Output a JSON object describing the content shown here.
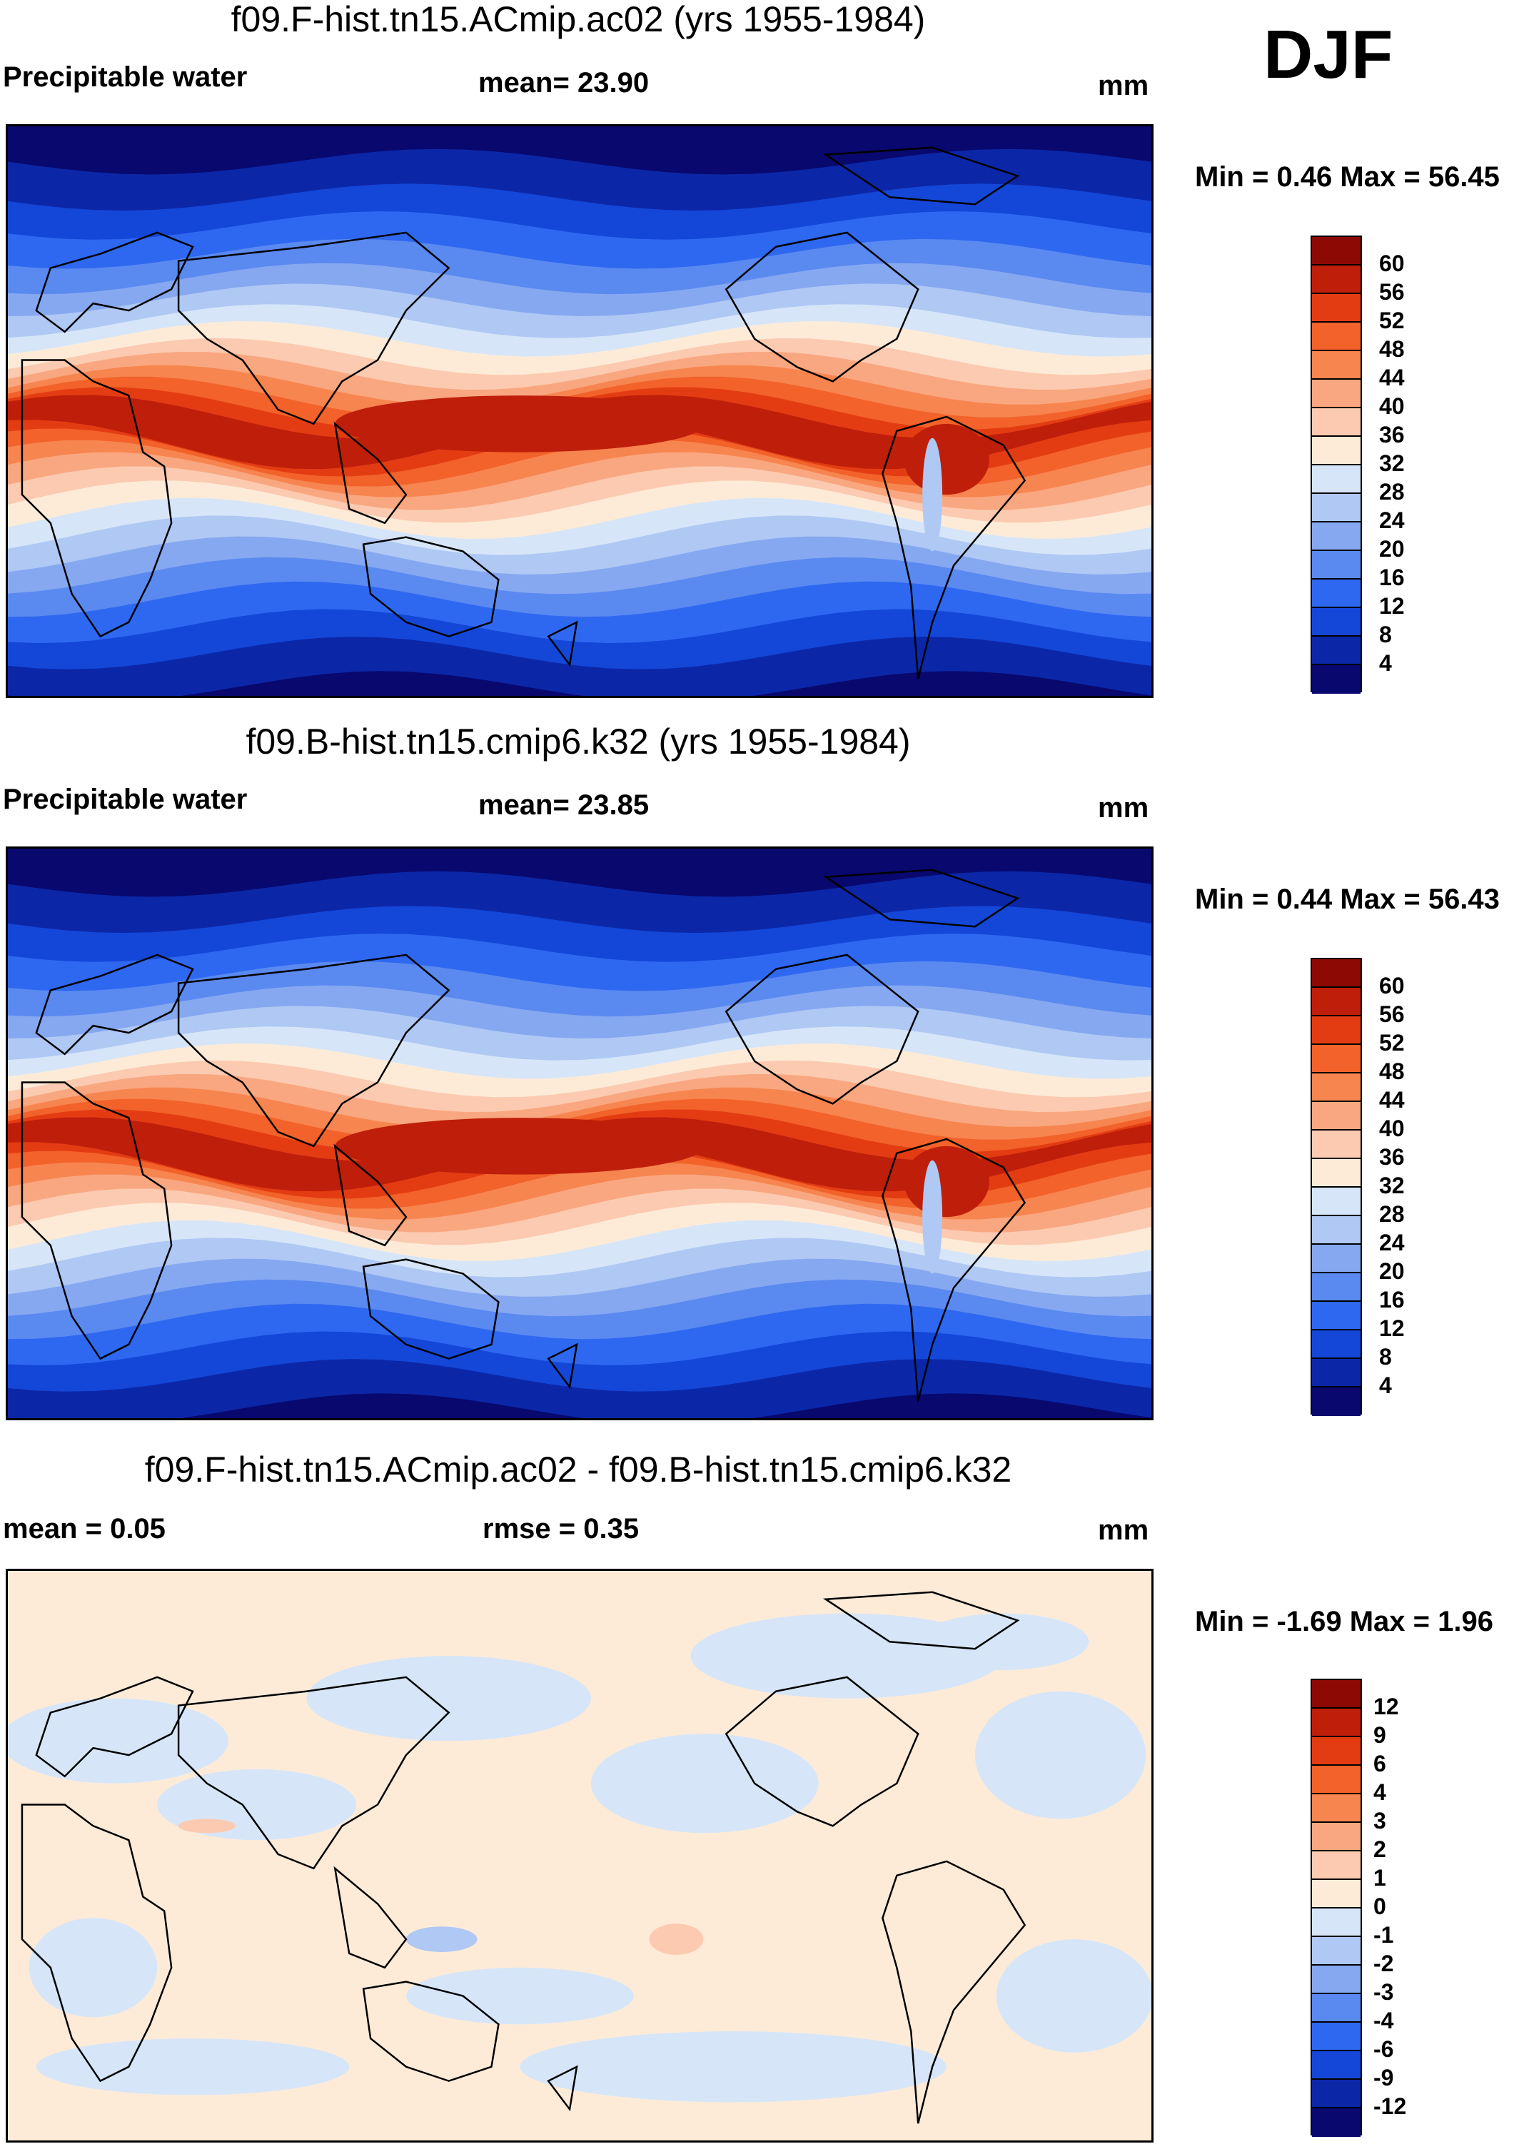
{
  "season": "DJF",
  "palettes": {
    "abs": [
      "#08086e",
      "#0b27a8",
      "#1447d8",
      "#2f68f0",
      "#5a89f0",
      "#86a8f0",
      "#afc8f4",
      "#d6e6f8",
      "#fdebd8",
      "#fccab0",
      "#f9a780",
      "#f78550",
      "#f2622a",
      "#e33c13",
      "#bf1e0b",
      "#8c0a03"
    ],
    "diff": [
      "#08086e",
      "#0b27a8",
      "#1447d8",
      "#2f68f0",
      "#5a89f0",
      "#86a8f0",
      "#afc8f4",
      "#d6e6f8",
      "#fdebd8",
      "#fccab0",
      "#f9a780",
      "#f78550",
      "#f2622a",
      "#e33c13",
      "#bf1e0b",
      "#8c0a03"
    ]
  },
  "panels": [
    {
      "title": "f09.F-hist.tn15.ACmip.ac02 (yrs 1955-1984)",
      "variable": "Precipitable water",
      "stat1": "mean=  23.90",
      "stat2": "",
      "units": "mm",
      "minmax": "Min =   0.46 Max =  56.45",
      "type": "abs",
      "levels": [
        "60",
        "56",
        "52",
        "48",
        "44",
        "40",
        "36",
        "32",
        "28",
        "24",
        "20",
        "16",
        "12",
        "8",
        "4"
      ]
    },
    {
      "title": "f09.B-hist.tn15.cmip6.k32 (yrs 1955-1984)",
      "variable": "Precipitable water",
      "stat1": "mean=  23.85",
      "stat2": "",
      "units": "mm",
      "minmax": "Min =   0.44 Max =  56.43",
      "type": "abs",
      "levels": [
        "60",
        "56",
        "52",
        "48",
        "44",
        "40",
        "36",
        "32",
        "28",
        "24",
        "20",
        "16",
        "12",
        "8",
        "4"
      ]
    },
    {
      "title": "f09.F-hist.tn15.ACmip.ac02 - f09.B-hist.tn15.cmip6.k32",
      "variable": "mean =   0.05",
      "stat1": "rmse =   0.35",
      "stat2": "",
      "units": "mm",
      "minmax": "Min =  -1.69 Max =   1.96",
      "type": "diff",
      "levels": [
        "12",
        "9",
        "6",
        "4",
        "3",
        "2",
        "1",
        "0",
        "-1",
        "-2",
        "-3",
        "-4",
        "-6",
        "-9",
        "-12"
      ]
    }
  ]
}
